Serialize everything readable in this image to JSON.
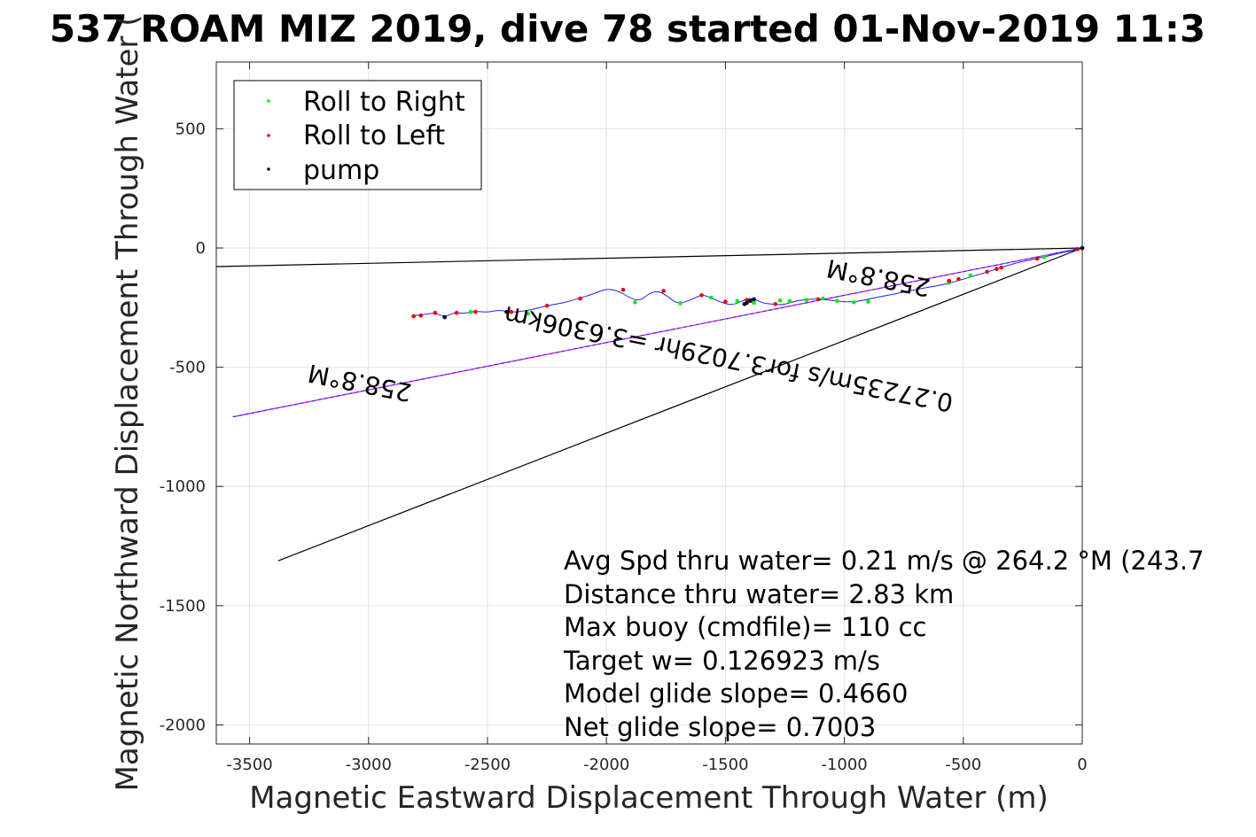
{
  "chart_data": {
    "type": "line",
    "title": "537 ROAM MIZ 2019, dive 78 started 01-Nov-2019 11:3",
    "xlabel": "Magnetic Eastward Displacement Through Water (m)",
    "ylabel": "Magnetic Northward Displacement Through Water (",
    "xlim": [
      -3640,
      0
    ],
    "ylim": [
      -2080,
      780
    ],
    "xticks": [
      -3500,
      -3000,
      -2500,
      -2000,
      -1500,
      -1000,
      -500,
      0
    ],
    "yticks": [
      -2000,
      -1500,
      -1000,
      -500,
      0,
      500
    ],
    "grid": true,
    "legend_position": "top-left",
    "legend": [
      {
        "name": "Roll to Right",
        "color": "#00ee00"
      },
      {
        "name": "Roll to Left",
        "color": "#ee0000"
      },
      {
        "name": "pump",
        "color": "#000033"
      }
    ],
    "lines": [
      {
        "role": "heading-bound-upper",
        "color": "#000000",
        "x": [
          0,
          -3640
        ],
        "y": [
          0,
          -78
        ]
      },
      {
        "role": "heading-bound-lower",
        "color": "#000000",
        "x": [
          0,
          -3380
        ],
        "y": [
          0,
          -1312
        ]
      },
      {
        "role": "course-line",
        "color": "#ff00ff",
        "x": [
          0,
          -3570
        ],
        "y": [
          0,
          -708
        ]
      },
      {
        "role": "course-line-overlay",
        "color": "#3333cc",
        "x": [
          0,
          -3570
        ],
        "y": [
          0,
          -708
        ]
      }
    ],
    "track": {
      "color": "#2222ee",
      "x": [
        0,
        -30,
        -100,
        -160,
        -230,
        -290,
        -340,
        -390,
        -440,
        -490,
        -540,
        -590,
        -650,
        -720,
        -800,
        -880,
        -960,
        -1040,
        -1120,
        -1200,
        -1260,
        -1300,
        -1340,
        -1370,
        -1400,
        -1430,
        -1470,
        -1520,
        -1560,
        -1600,
        -1650,
        -1700,
        -1740,
        -1780,
        -1820,
        -1860,
        -1900,
        -1950,
        -2000,
        -2060,
        -2120,
        -2170,
        -2240,
        -2300,
        -2350,
        -2400,
        -2450,
        -2500,
        -2550,
        -2600,
        -2640,
        -2680,
        -2720,
        -2760,
        -2790,
        -2820
      ],
      "y": [
        0,
        -10,
        -22,
        -38,
        -52,
        -66,
        -82,
        -98,
        -112,
        -128,
        -142,
        -155,
        -165,
        -178,
        -195,
        -210,
        -228,
        -222,
        -212,
        -220,
        -240,
        -235,
        -232,
        -218,
        -210,
        -222,
        -240,
        -228,
        -208,
        -195,
        -220,
        -235,
        -205,
        -180,
        -190,
        -222,
        -210,
        -180,
        -170,
        -195,
        -212,
        -228,
        -240,
        -255,
        -265,
        -270,
        -260,
        -270,
        -265,
        -275,
        -270,
        -290,
        -272,
        -278,
        -282,
        -285
      ]
    },
    "points": {
      "roll_right": {
        "x": [
          0,
          -160,
          -470,
          -560,
          -900,
          -960,
          -1030,
          -1090,
          -1160,
          -1230,
          -1270,
          -1380,
          -1450,
          -1560,
          -1690,
          -1880,
          -2330,
          -2570
        ],
        "y": [
          0,
          -38,
          -115,
          -145,
          -225,
          -228,
          -222,
          -212,
          -218,
          -222,
          -220,
          -230,
          -222,
          -208,
          -232,
          -228,
          -275,
          -268
        ]
      },
      "roll_left": {
        "x": [
          0,
          -20,
          -190,
          -340,
          -360,
          -400,
          -520,
          -560,
          -1110,
          -1290,
          -1410,
          -1500,
          -1600,
          -1760,
          -1930,
          -2110,
          -2250,
          -2400,
          -2550,
          -2630,
          -2720,
          -2780,
          -2810
        ],
        "y": [
          0,
          -5,
          -45,
          -82,
          -88,
          -100,
          -130,
          -138,
          -215,
          -235,
          -218,
          -225,
          -198,
          -180,
          -175,
          -212,
          -242,
          -268,
          -268,
          -272,
          -272,
          -283,
          -286
        ]
      },
      "pump": {
        "x": [
          0,
          -1380,
          -1395,
          -1410,
          -1420,
          -2420,
          -2680
        ],
        "y": [
          0,
          -215,
          -222,
          -230,
          -235,
          -268,
          -290
        ]
      }
    },
    "rotated_labels": [
      {
        "text": "258.8°M",
        "x": -850,
        "y": -90,
        "angle_deg": 191.2
      },
      {
        "text": "0.27235m/s for3.7029hr =3.6306km",
        "x": -1480,
        "y": -430,
        "angle_deg": 191.2
      },
      {
        "text": "258.8°M",
        "x": -3030,
        "y": -530,
        "angle_deg": 191.2
      }
    ],
    "annotations": [
      "Avg Spd thru water=  0.21 m/s @ 264.2 °M (243.7",
      "Distance thru water=  2.83 km",
      "Max buoy (cmdfile)= 110 cc",
      "Target w= 0.126923 m/s",
      "Model glide slope= 0.4660",
      "Net glide slope= 0.7003"
    ]
  }
}
